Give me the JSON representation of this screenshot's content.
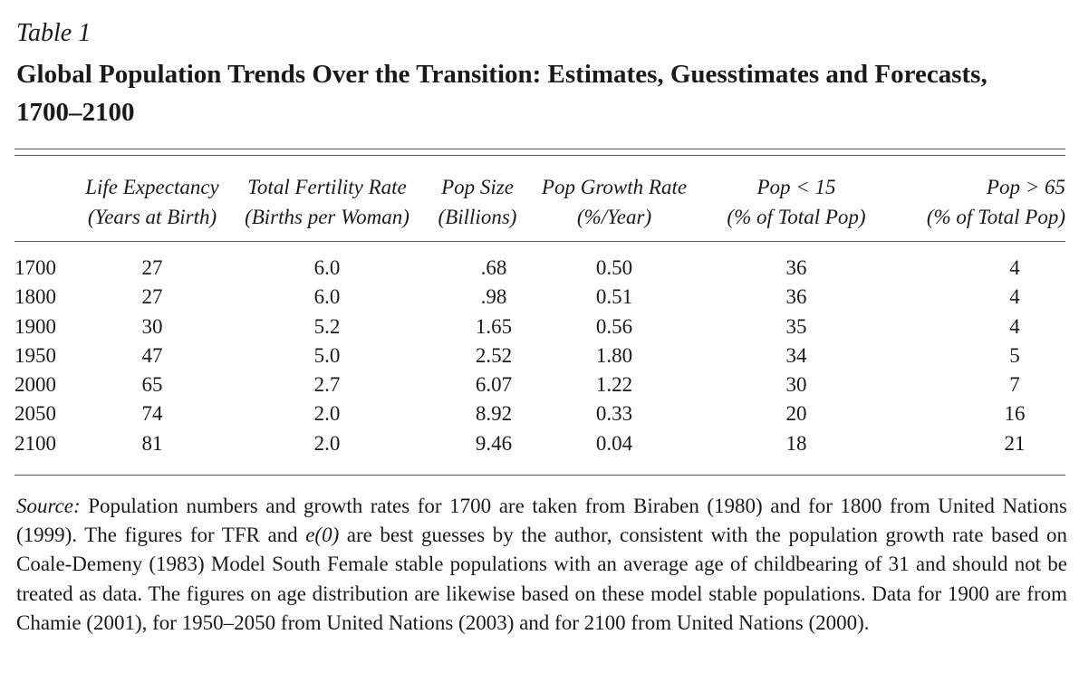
{
  "table_label": "Table 1",
  "title": "Global Population Trends Over the Transition: Estimates, Guesstimates and Forecasts, 1700–2100",
  "columns": [
    {
      "line1": "Life Expectancy",
      "line2": "(Years at Birth)"
    },
    {
      "line1": "Total Fertility Rate",
      "line2": "(Births per Woman)"
    },
    {
      "line1": "Pop Size",
      "line2": "(Billions)"
    },
    {
      "line1": "Pop Growth Rate",
      "line2": "(%/Year)"
    },
    {
      "line1": "Pop < 15",
      "line2": "(% of Total Pop)"
    },
    {
      "line1": "Pop > 65",
      "line2": "(% of Total Pop)"
    }
  ],
  "rows": [
    {
      "year": "1700",
      "e0": "27",
      "tfr": "6.0",
      "size": ".68",
      "growth": "0.50",
      "under15": "36",
      "over65": "4"
    },
    {
      "year": "1800",
      "e0": "27",
      "tfr": "6.0",
      "size": ".98",
      "growth": "0.51",
      "under15": "36",
      "over65": "4"
    },
    {
      "year": "1900",
      "e0": "30",
      "tfr": "5.2",
      "size": "1.65",
      "growth": "0.56",
      "under15": "35",
      "over65": "4"
    },
    {
      "year": "1950",
      "e0": "47",
      "tfr": "5.0",
      "size": "2.52",
      "growth": "1.80",
      "under15": "34",
      "over65": "5"
    },
    {
      "year": "2000",
      "e0": "65",
      "tfr": "2.7",
      "size": "6.07",
      "growth": "1.22",
      "under15": "30",
      "over65": "7"
    },
    {
      "year": "2050",
      "e0": "74",
      "tfr": "2.0",
      "size": "8.92",
      "growth": "0.33",
      "under15": "20",
      "over65": "16"
    },
    {
      "year": "2100",
      "e0": "81",
      "tfr": "2.0",
      "size": "9.46",
      "growth": "0.04",
      "under15": "18",
      "over65": "21"
    }
  ],
  "note": {
    "source_label": "Source:",
    "part1": " Population numbers and growth rates for 1700 are taken from Biraben (1980) and for 1800 from United Nations (1999). The figures for TFR and ",
    "symbol": "e(0)",
    "part2": " are best guesses by the author, consistent with the population growth rate based on Coale-Demeny (1983) Model South Female stable populations with an average age of childbearing of 31 and should not be treated as data. The figures on age distribution are likewise based on these model stable populations. Data for 1900 are from Chamie (2001), for 1950–2050 from United Nations (2003) and for 2100 from United Nations (2000)."
  }
}
